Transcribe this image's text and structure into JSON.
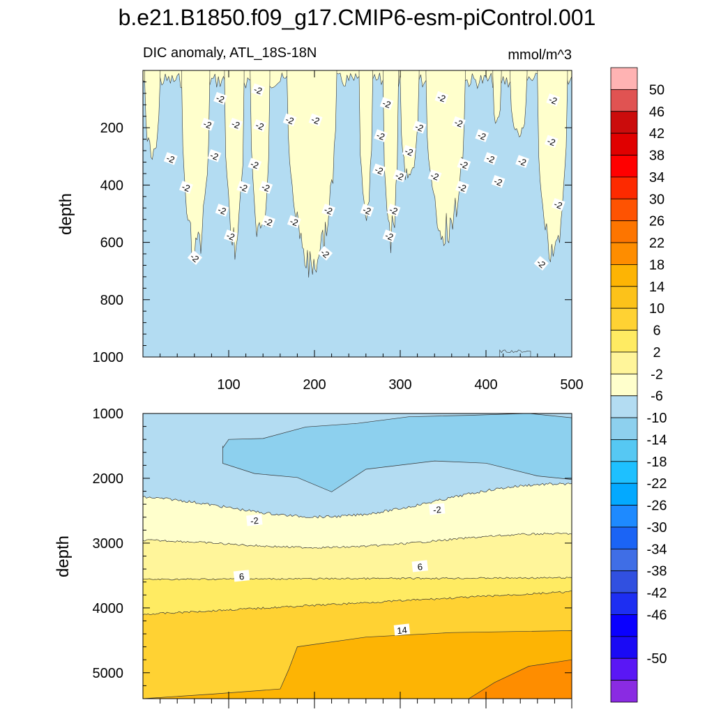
{
  "title": "b.e21.B1850.f09_g17.CMIP6-esm-piControl.001",
  "colors": {
    "cb": [
      "#8a2be2",
      "#5a17f5",
      "#1a0af5",
      "#0a00ff",
      "#1d2ef2",
      "#3150e0",
      "#3f6ee6",
      "#1b64f5",
      "#1e8aff",
      "#03a9ff",
      "#1ec0ff",
      "#56c8f3",
      "#8dd0ee",
      "#b3dcf2",
      "#ffffcc",
      "#fff59a",
      "#ffeb62",
      "#ffd233",
      "#fcc21a",
      "#fdb404",
      "#fe8d00",
      "#fd7500",
      "#fe5302",
      "#fd2a00",
      "#ff0000",
      "#e00000",
      "#cb0c0c",
      "#e05352",
      "#ffb3b3"
    ],
    "line": "#333333",
    "label_bg": "#ffffff"
  },
  "chart_data": [
    {
      "type": "contour",
      "subtitle": "DIC anomaly, ATL_18S-18N",
      "units": "mmol/m^3",
      "ylabel": "depth",
      "xlim": [
        0,
        500
      ],
      "ylim": [
        0,
        1000
      ],
      "y_inverted": true,
      "xticks": [
        100,
        200,
        300,
        400,
        500
      ],
      "yticks": [
        200,
        400,
        600,
        800,
        1000
      ],
      "background_level": "-6 to -2",
      "patch_level": "-2 to 2",
      "patches": [
        {
          "x_start": 2,
          "x_end": 20,
          "bottom": 320
        },
        {
          "x_start": 45,
          "x_end": 78,
          "bottom": 680
        },
        {
          "x_start": 95,
          "x_end": 118,
          "bottom": 650
        },
        {
          "x_start": 125,
          "x_end": 148,
          "bottom": 640
        },
        {
          "x_start": 168,
          "x_end": 226,
          "bottom": 740
        },
        {
          "x_start": 252,
          "x_end": 268,
          "bottom": 540
        },
        {
          "x_start": 280,
          "x_end": 298,
          "bottom": 630
        },
        {
          "x_start": 300,
          "x_end": 322,
          "bottom": 430
        },
        {
          "x_start": 330,
          "x_end": 376,
          "bottom": 620
        },
        {
          "x_start": 408,
          "x_end": 418,
          "bottom": 210
        },
        {
          "x_start": 428,
          "x_end": 448,
          "bottom": 250
        },
        {
          "x_start": 460,
          "x_end": 495,
          "bottom": 700
        }
      ],
      "contour_labels": [
        {
          "text": "-2",
          "x": 90,
          "y": 100
        },
        {
          "text": "-2",
          "x": 134,
          "y": 70
        },
        {
          "text": "-2",
          "x": 75,
          "y": 190
        },
        {
          "text": "-2",
          "x": 108,
          "y": 190
        },
        {
          "text": "-2",
          "x": 136,
          "y": 195
        },
        {
          "text": "-2",
          "x": 171,
          "y": 175
        },
        {
          "text": "-2",
          "x": 201,
          "y": 175
        },
        {
          "text": "-2",
          "x": 284,
          "y": 118
        },
        {
          "text": "-2",
          "x": 322,
          "y": 200
        },
        {
          "text": "-2",
          "x": 348,
          "y": 97
        },
        {
          "text": "-2",
          "x": 368,
          "y": 185
        },
        {
          "text": "-2",
          "x": 395,
          "y": 230
        },
        {
          "text": "-2",
          "x": 478,
          "y": 105
        },
        {
          "text": "-2",
          "x": 277,
          "y": 230
        },
        {
          "text": "-2",
          "x": 310,
          "y": 285
        },
        {
          "text": "-2",
          "x": 32,
          "y": 310
        },
        {
          "text": "-2",
          "x": 83,
          "y": 300
        },
        {
          "text": "-2",
          "x": 130,
          "y": 330
        },
        {
          "text": "-2",
          "x": 275,
          "y": 350
        },
        {
          "text": "-2",
          "x": 299,
          "y": 370
        },
        {
          "text": "-2",
          "x": 340,
          "y": 370
        },
        {
          "text": "-2",
          "x": 374,
          "y": 330
        },
        {
          "text": "-2",
          "x": 405,
          "y": 310
        },
        {
          "text": "-2",
          "x": 442,
          "y": 320
        },
        {
          "text": "-2",
          "x": 476,
          "y": 250
        },
        {
          "text": "-2",
          "x": 50,
          "y": 410
        },
        {
          "text": "-2",
          "x": 117,
          "y": 410
        },
        {
          "text": "-2",
          "x": 143,
          "y": 410
        },
        {
          "text": "-2",
          "x": 372,
          "y": 410
        },
        {
          "text": "-2",
          "x": 414,
          "y": 390
        },
        {
          "text": "-2",
          "x": 92,
          "y": 490
        },
        {
          "text": "-2",
          "x": 146,
          "y": 530
        },
        {
          "text": "-2",
          "x": 176,
          "y": 530
        },
        {
          "text": "-2",
          "x": 216,
          "y": 490
        },
        {
          "text": "-2",
          "x": 261,
          "y": 490
        },
        {
          "text": "-2",
          "x": 292,
          "y": 490
        },
        {
          "text": "-2",
          "x": 484,
          "y": 470
        },
        {
          "text": "-2",
          "x": 102,
          "y": 580
        },
        {
          "text": "-2",
          "x": 287,
          "y": 580
        },
        {
          "text": "-2",
          "x": 60,
          "y": 655
        },
        {
          "text": "-2",
          "x": 212,
          "y": 640
        },
        {
          "text": "-2",
          "x": 464,
          "y": 675
        }
      ]
    },
    {
      "type": "contour",
      "ylabel": "depth",
      "xlim": [
        0,
        500
      ],
      "ylim": [
        1000,
        5400
      ],
      "y_inverted": true,
      "yticks": [
        1000,
        2000,
        3000,
        4000,
        5000
      ],
      "background_level": "-6 to -2",
      "levels_from_top": [
        "-10 to -6",
        "-6 to -2",
        "-2 to 2",
        "2 to 6",
        "6 to 10",
        "10 to 14",
        "14 to 18",
        "18 to 22"
      ],
      "contour_labels": [
        {
          "text": "-2",
          "x": 130,
          "y": 2650
        },
        {
          "text": "-2",
          "x": 343,
          "y": 2480
        },
        {
          "text": "6",
          "x": 115,
          "y": 3510
        },
        {
          "text": "6",
          "x": 323,
          "y": 3360
        },
        {
          "text": "14",
          "x": 302,
          "y": 4340
        }
      ]
    }
  ],
  "colorbar": {
    "labels": [
      "50",
      "46",
      "42",
      "38",
      "34",
      "30",
      "26",
      "22",
      "18",
      "14",
      "10",
      "6",
      "2",
      "-2",
      "-6",
      "-10",
      "-14",
      "-18",
      "-22",
      "-26",
      "-30",
      "-34",
      "-38",
      "-42",
      "-46",
      "-50"
    ]
  }
}
